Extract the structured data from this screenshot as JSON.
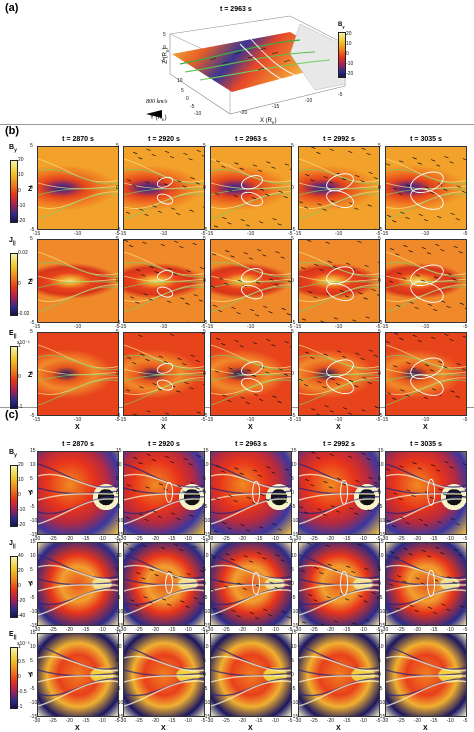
{
  "panel_a": {
    "label": "(a)",
    "time": "t = 2963 s",
    "colorbar": {
      "symbol": "B",
      "sub": "y",
      "ticks": [
        "20",
        "10",
        "0",
        "-10",
        "-20"
      ]
    },
    "axes": {
      "z": "Z (R",
      "z_sub": "E",
      "z_close": ")",
      "y": "Y (R",
      "y_sub": "E",
      "y_close": ")",
      "x": "X (R",
      "x_sub": "E",
      "x_close": ")",
      "z_ticks": [
        "5",
        "0",
        "-5"
      ],
      "y_ticks": [
        "10",
        "5",
        "0",
        "-5",
        "-10"
      ],
      "x_ticks": [
        "-20",
        "-15",
        "-10",
        "-5"
      ]
    },
    "velocity_scale": "800 km/s"
  },
  "panel_b": {
    "label": "(b)",
    "times": [
      "t = 2870 s",
      "t = 2920 s",
      "t = 2963 s",
      "t = 2992 s",
      "t = 3035 s"
    ],
    "rows": [
      {
        "symbol": "B",
        "sub": "y",
        "ticks": [
          "20",
          "10",
          "0",
          "-10",
          "-20"
        ],
        "scale": "sym"
      },
      {
        "symbol": "J",
        "sub": "||",
        "ticks": [
          "0.02",
          "0",
          "-0.02"
        ],
        "scale": "sym"
      },
      {
        "symbol": "E",
        "sub": "||",
        "ticks": [
          "1",
          "0",
          "-1"
        ],
        "scale": "sym",
        "exp": "x10⁻³"
      }
    ],
    "ylabel": "Z",
    "xlabel": "X",
    "x_ticks": [
      "-15",
      "-10",
      "-5"
    ],
    "y_ticks": [
      "5",
      "0",
      "-5"
    ]
  },
  "panel_c": {
    "label": "(c)",
    "times": [
      "t = 2870 s",
      "t = 2920 s",
      "t = 2963 s",
      "t = 2992 s",
      "t = 3035 s"
    ],
    "rows": [
      {
        "symbol": "B",
        "sub": "y",
        "ticks": [
          "20",
          "10",
          "0",
          "-10",
          "-20"
        ]
      },
      {
        "symbol": "J",
        "sub": "||",
        "ticks": [
          "40",
          "20",
          "0",
          "-20",
          "-40"
        ]
      },
      {
        "symbol": "E",
        "sub": "||",
        "ticks": [
          "1",
          "0.5",
          "0",
          "-0.5",
          "-1"
        ],
        "exp": "x10⁻³"
      }
    ],
    "ylabel": "Y",
    "xlabel": "X",
    "x_ticks": [
      "-30",
      "-25",
      "-20",
      "-15",
      "-10",
      "-5"
    ],
    "y_ticks": [
      "15",
      "10",
      "5",
      "0",
      "-5",
      "-10",
      "-15"
    ]
  }
}
